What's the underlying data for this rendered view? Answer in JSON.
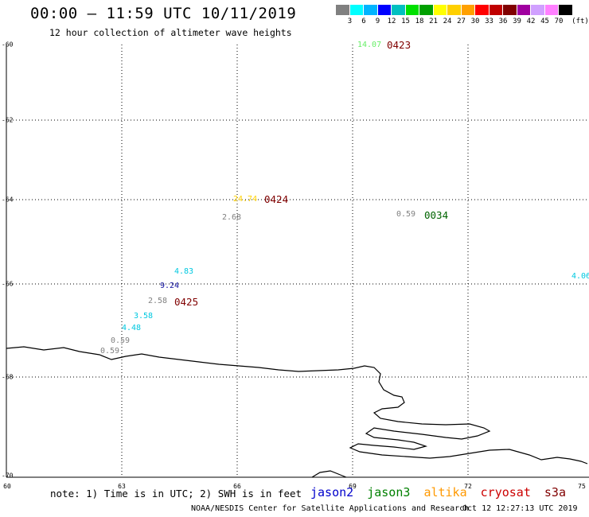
{
  "header": {
    "title": "00:00 – 11:59 UTC 10/11/2019",
    "subtitle": "12 hour collection of altimeter wave heights"
  },
  "colorbar": {
    "colors": [
      "#808080",
      "#00ffff",
      "#00b4ff",
      "#0000ff",
      "#00c0c0",
      "#00e000",
      "#00a000",
      "#ffff00",
      "#ffd000",
      "#ffa000",
      "#ff0000",
      "#c00000",
      "#800000",
      "#a000a0",
      "#d0a0ff",
      "#ff80ff",
      "#000000"
    ],
    "labels": [
      "3",
      "6",
      "9",
      "12",
      "15",
      "18",
      "21",
      "24",
      "27",
      "30",
      "33",
      "36",
      "39",
      "42",
      "45",
      "70",
      "(ft)"
    ]
  },
  "axes": {
    "lat_labels": [
      "-60",
      "-62",
      "-64",
      "-66",
      "-68",
      "-70"
    ],
    "lon_labels": [
      "60",
      "63",
      "66",
      "69",
      "72",
      "75"
    ]
  },
  "observations": [
    {
      "text": "14.07",
      "color": "#66ee66"
    },
    {
      "text": "24.74",
      "color": "#ffd000"
    },
    {
      "text": "2.68",
      "color": "#808080"
    },
    {
      "text": "0.59",
      "color": "#808080"
    },
    {
      "text": "4.06",
      "color": "#00c8e0"
    },
    {
      "text": "4.83",
      "color": "#00c8e0"
    },
    {
      "text": "9.24",
      "color": "#1010a0"
    },
    {
      "text": "2.58",
      "color": "#808080"
    },
    {
      "text": "3.58",
      "color": "#00c8e0"
    },
    {
      "text": "4.48",
      "color": "#00c8e0"
    },
    {
      "text": "0.59",
      "color": "#808080"
    },
    {
      "text": "0.59",
      "color": "#808080"
    }
  ],
  "times": [
    {
      "text": "0423",
      "color": "#800000"
    },
    {
      "text": "0424",
      "color": "#800000"
    },
    {
      "text": "0034",
      "color": "#006400"
    },
    {
      "text": "0425",
      "color": "#800000"
    }
  ],
  "footer": {
    "note": "note: 1) Time is in UTC; 2) SWH is in feet",
    "satellites": [
      {
        "name": "jason2",
        "color": "#0000cc"
      },
      {
        "name": "jason3",
        "color": "#008000"
      },
      {
        "name": "altika",
        "color": "#ff9900"
      },
      {
        "name": "cryosat",
        "color": "#cc0000"
      },
      {
        "name": "s3a",
        "color": "#800000"
      }
    ],
    "credit": "NOAA/NESDIS Center for Satellite Applications and Research",
    "timestamp": "Oct 12 12:27:13 UTC 2019"
  }
}
